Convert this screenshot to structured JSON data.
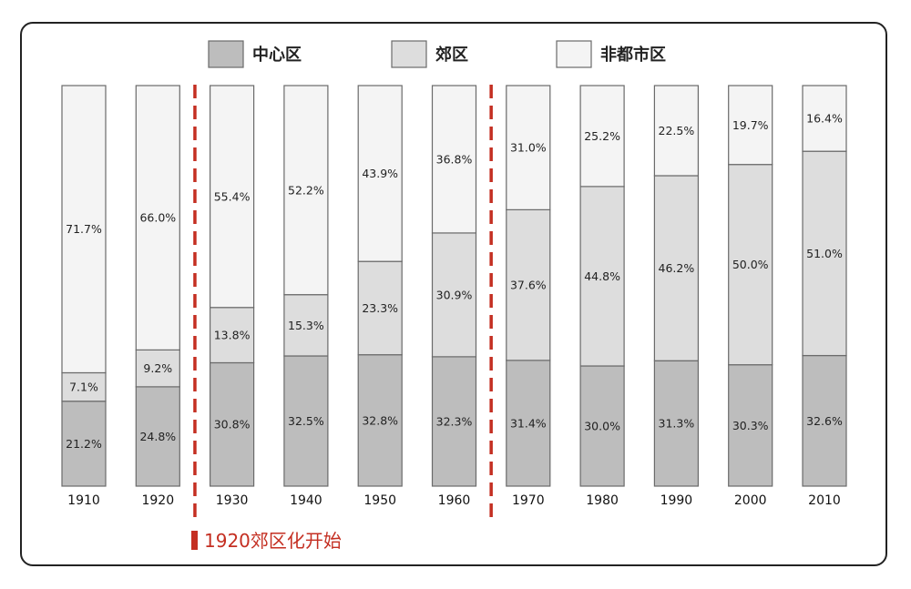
{
  "colors": {
    "inner_city": "#bdbdbd",
    "suburb": "#dddddd",
    "non_metro": "#f4f4f4",
    "marker": "#c42f22",
    "stroke": "#6a6a6a"
  },
  "legend": [
    {
      "key": "inner_city",
      "label": "中心区"
    },
    {
      "key": "suburb",
      "label": "郊区"
    },
    {
      "key": "non_metro",
      "label": "非都市区"
    }
  ],
  "annotation": "1920郊区化开始",
  "chart_data": {
    "type": "bar",
    "stacked": true,
    "categories": [
      "1910",
      "1920",
      "1930",
      "1940",
      "1950",
      "1960",
      "1970",
      "1980",
      "1990",
      "2000",
      "2010"
    ],
    "series": [
      {
        "name": "中心区",
        "values": [
          21.2,
          24.8,
          30.8,
          32.5,
          32.8,
          32.3,
          31.4,
          30.0,
          31.3,
          30.3,
          32.6
        ]
      },
      {
        "name": "郊区",
        "values": [
          7.1,
          9.2,
          13.8,
          15.3,
          23.3,
          30.9,
          37.6,
          44.8,
          46.2,
          50.0,
          51.0
        ]
      },
      {
        "name": "非都市区",
        "values": [
          71.7,
          66.0,
          55.4,
          52.2,
          43.9,
          36.8,
          31.0,
          25.2,
          22.5,
          19.7,
          16.4
        ]
      }
    ],
    "ylim": [
      0,
      100
    ],
    "legend_position": "top-center",
    "markers": [
      {
        "between": [
          "1920",
          "1930"
        ],
        "style": "dashed-red"
      },
      {
        "between": [
          "1960",
          "1970"
        ],
        "style": "dashed-red"
      }
    ]
  }
}
